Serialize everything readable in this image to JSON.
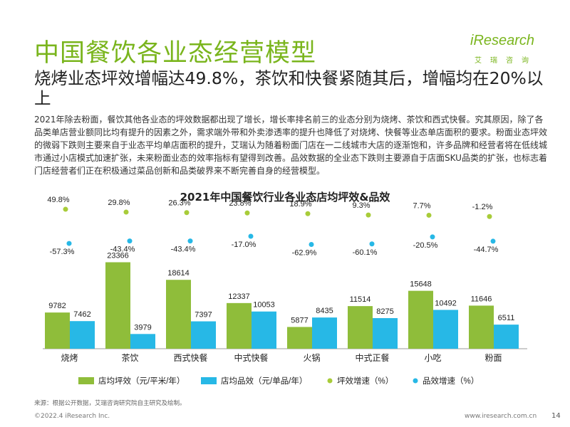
{
  "header": {
    "title": "中国餐饮各业态经营模型",
    "logo_text": "iResearch",
    "logo_sub": "艾瑞咨询",
    "headline": "烧烤业态坪效增幅达49.8%，茶饮和快餐紧随其后，增幅均在20%以上"
  },
  "body_text": "2021年除去粉面，餐饮其他各业态的坪效数据都出现了增长，增长率排名前三的业态分别为烧烤、茶饮和西式快餐。究其原因，除了各品类单店营业额同比均有提升的因素之外，需求端外带和外卖渗透率的提升也降低了对烧烤、快餐等业态单店面积的要求。粉面业态坪效的微弱下跌则主要来自于业态平均单店面积的提升，艾瑞认为随着粉面门店在一二线城市大店的逐渐饱和，许多品牌和经营者将在低线城市通过小店模式加速扩张，未来粉面业态的效率指标有望得到改善。品效数据的全业态下跌则主要源自于店面SKU品类的扩张，也标志着门店经营者们正在积极通过菜品创新和品类破界来不断完善自身的经营模型。",
  "chart_data": {
    "type": "bar",
    "title": "2021年中国餐饮行业各业态店均坪效&品效",
    "categories": [
      "烧烤",
      "茶饮",
      "西式快餐",
      "中式快餐",
      "火锅",
      "中式正餐",
      "小吃",
      "粉面"
    ],
    "series": [
      {
        "name": "店均坪效（元/平米/年）",
        "type": "bar",
        "color": "#8fbd3a",
        "values": [
          9782,
          23366,
          18614,
          12337,
          5877,
          11514,
          15648,
          11646
        ]
      },
      {
        "name": "店均品效（元/单品/年）",
        "type": "bar",
        "color": "#27b8e6",
        "values": [
          7462,
          3979,
          7397,
          10053,
          8435,
          8275,
          10492,
          6511
        ]
      },
      {
        "name": "坪效增速（%）",
        "type": "dot",
        "color": "#a8cc39",
        "values": [
          49.8,
          29.8,
          26.3,
          23.8,
          18.9,
          9.3,
          7.7,
          -1.2
        ],
        "labels": [
          "49.8%",
          "29.8%",
          "26.3%",
          "23.8%",
          "18.9%",
          "9.3%",
          "7.7%",
          "-1.2%"
        ]
      },
      {
        "name": "品效增速（%）",
        "type": "dot",
        "color": "#27b8e6",
        "values": [
          -57.3,
          -43.4,
          -43.4,
          -17.0,
          -62.9,
          -60.1,
          -20.5,
          -44.7
        ],
        "labels": [
          "-57.3%",
          "-43.4%",
          "-43.4%",
          "-17.0%",
          "-62.9%",
          "-60.1%",
          "-20.5%",
          "-44.7%"
        ]
      }
    ],
    "ylim": [
      0,
      25000
    ]
  },
  "source_note": "来源：根据公开数据，艾瑞咨询研究院自主研究及绘制。",
  "footer": {
    "copyright": "©2022.4 iResearch Inc.",
    "url": "www.iresearch.com.cn",
    "page_number": "14"
  }
}
